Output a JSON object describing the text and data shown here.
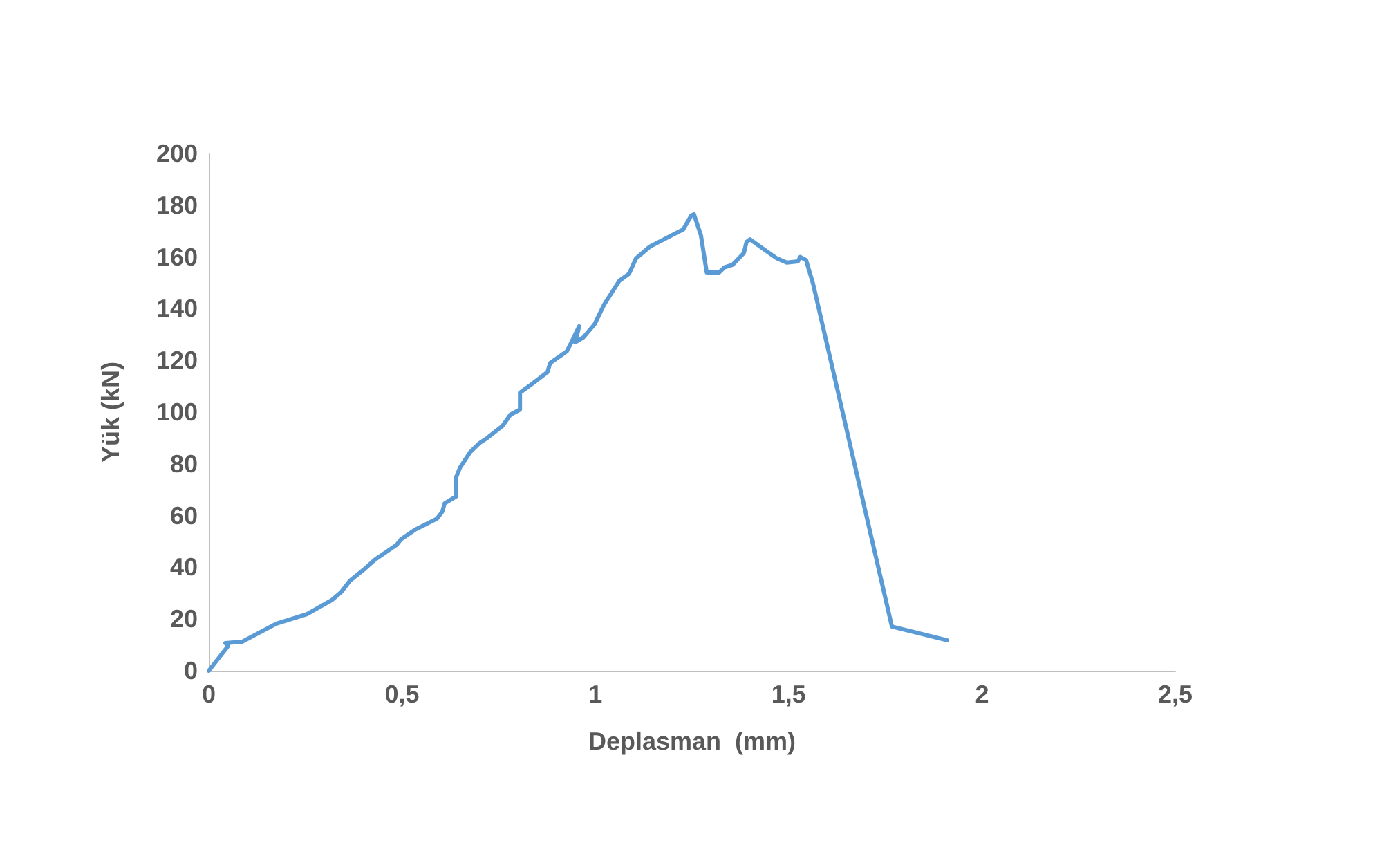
{
  "chart_data": {
    "type": "line",
    "xlabel": "Deplasman  (mm)",
    "ylabel": "Yük (kN)",
    "xlim": [
      0,
      2.5
    ],
    "xticks": [
      {
        "value": 0,
        "label": "0"
      },
      {
        "value": 0.5,
        "label": "0,5"
      },
      {
        "value": 1,
        "label": "1"
      },
      {
        "value": 1.5,
        "label": "1,5"
      },
      {
        "value": 2,
        "label": "2"
      },
      {
        "value": 2.5,
        "label": "2,5"
      }
    ],
    "ylim": [
      0,
      200
    ],
    "yticks": [
      0,
      20,
      40,
      60,
      80,
      100,
      120,
      140,
      160,
      180,
      200
    ],
    "grid": false,
    "marker": "none",
    "line_style": "solid",
    "series": [
      {
        "color": "#5b9bd5",
        "x": [
          0,
          0.05,
          0.043,
          0.086,
          0.175,
          0.254,
          0.318,
          0.343,
          0.365,
          0.4,
          0.43,
          0.486,
          0.497,
          0.533,
          0.59,
          0.604,
          0.61,
          0.64,
          0.64,
          0.65,
          0.676,
          0.7,
          0.72,
          0.76,
          0.78,
          0.805,
          0.805,
          0.837,
          0.876,
          0.883,
          0.926,
          0.937,
          0.958,
          0.948,
          0.969,
          0.998,
          1.023,
          1.033,
          1.062,
          1.087,
          1.105,
          1.141,
          1.212,
          1.227,
          1.248,
          1.255,
          1.273,
          1.288,
          1.32,
          1.334,
          1.355,
          1.384,
          1.391,
          1.4,
          1.445,
          1.47,
          1.495,
          1.524,
          1.53,
          1.545,
          1.563,
          1.767,
          1.91
        ],
        "values": [
          0,
          9.6,
          10.7,
          11.2,
          18.2,
          21.9,
          27.3,
          30.5,
          34.8,
          39,
          43,
          48.7,
          50.8,
          54.5,
          58.8,
          61.5,
          64.7,
          67.4,
          74.9,
          78.6,
          84.5,
          88,
          90,
          94.7,
          99,
          101,
          107.5,
          111,
          115.5,
          119,
          123.5,
          126.7,
          133.2,
          127,
          128.9,
          134,
          141.7,
          144,
          150.8,
          153.5,
          159.4,
          164,
          169.5,
          170.6,
          176,
          176.5,
          168.4,
          154,
          154,
          156,
          157,
          161.5,
          165.8,
          166.8,
          162,
          159.4,
          157.8,
          158.3,
          160,
          158.8,
          149.7,
          17.1,
          11.8
        ]
      }
    ]
  }
}
